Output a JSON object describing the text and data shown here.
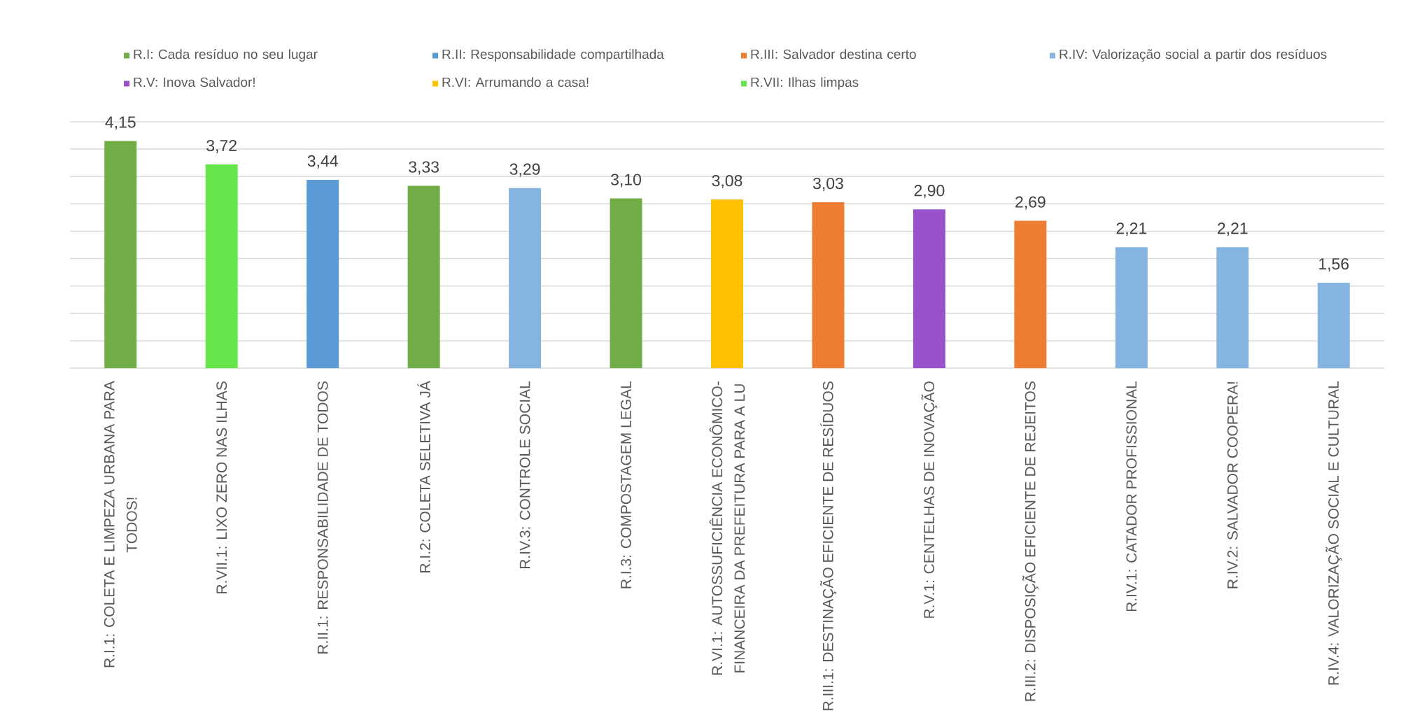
{
  "chart_data": {
    "type": "bar",
    "stacked": true,
    "categories": [
      "R.I.1: COLETA E LIMPEZA URBANA PARA TODOS!",
      "R.VII.1: LIXO ZERO NAS ILHAS",
      "R.II.1: RESPONSABILIDADE DE TODOS",
      "R.I.2: COLETA SELETIVA JÁ",
      "R.IV.3: CONTROLE SOCIAL",
      "R.I.3: COMPOSTAGEM LEGAL",
      "R.VI.1: AUTOSSUFICIÊNCIA ECONÔMICO-FINANCEIRA DA PREFEITURA PARA A LU",
      "R.III.1: DESTINAÇÃO EFICIENTE DE RESÍDUOS",
      "R.V.1: CENTELHAS DE INOVAÇÃO",
      "R.III.2: DISPOSIÇÃO EFICIENTE DE REJEITOS",
      "R.IV.1: CATADOR PROFISSIONAL",
      "R.IV.2: SALVADOR COOPERA!",
      "R.IV.4: VALORIZAÇÃO SOCIAL E CULTURAL"
    ],
    "series": [
      {
        "name": "R.I: Cada resíduo no seu lugar",
        "color": "#70ad47",
        "values": [
          4.15,
          null,
          null,
          3.33,
          null,
          3.1,
          null,
          null,
          null,
          null,
          null,
          null,
          null
        ],
        "value_labels": [
          "4,15",
          null,
          null,
          "3,33",
          null,
          "3,10",
          null,
          null,
          null,
          null,
          null,
          null,
          null
        ]
      },
      {
        "name": "R.II: Responsabilidade compartilhada",
        "color": "#5b9bd5",
        "values": [
          null,
          null,
          3.44,
          null,
          null,
          null,
          null,
          null,
          null,
          null,
          null,
          null,
          null
        ],
        "value_labels": [
          null,
          null,
          "3,44",
          null,
          null,
          null,
          null,
          null,
          null,
          null,
          null,
          null,
          null
        ]
      },
      {
        "name": "R.III: Salvador destina certo",
        "color": "#ed7d31",
        "values": [
          null,
          null,
          null,
          null,
          null,
          null,
          null,
          3.03,
          null,
          2.69,
          null,
          null,
          null
        ],
        "value_labels": [
          null,
          null,
          null,
          null,
          null,
          null,
          null,
          "3,03",
          null,
          "2,69",
          null,
          null,
          null
        ]
      },
      {
        "name": "R.IV: Valorização social a partir dos resíduos",
        "color": "#85b4e1",
        "values": [
          null,
          null,
          null,
          null,
          3.29,
          null,
          null,
          null,
          null,
          null,
          2.21,
          2.21,
          1.56
        ],
        "value_labels": [
          null,
          null,
          null,
          null,
          "3,29",
          null,
          null,
          null,
          null,
          null,
          "2,21",
          "2,21",
          "1,56"
        ]
      },
      {
        "name": "R.V: Inova Salvador!",
        "color": "#9952cc",
        "values": [
          null,
          null,
          null,
          null,
          null,
          null,
          null,
          null,
          2.9,
          null,
          null,
          null,
          null
        ],
        "value_labels": [
          null,
          null,
          null,
          null,
          null,
          null,
          null,
          null,
          "2,90",
          null,
          null,
          null,
          null
        ]
      },
      {
        "name": "R.VI: Arrumando a casa!",
        "color": "#ffc000",
        "values": [
          null,
          null,
          null,
          null,
          null,
          null,
          3.08,
          null,
          null,
          null,
          null,
          null,
          null
        ],
        "value_labels": [
          null,
          null,
          null,
          null,
          null,
          null,
          "3,08",
          null,
          null,
          null,
          null,
          null,
          null
        ]
      },
      {
        "name": "R.VII: Ilhas limpas",
        "color": "#66e64a",
        "values": [
          null,
          3.72,
          null,
          null,
          null,
          null,
          null,
          null,
          null,
          null,
          null,
          null,
          null
        ],
        "value_labels": [
          null,
          "3,72",
          null,
          null,
          null,
          null,
          null,
          null,
          null,
          null,
          null,
          null,
          null
        ]
      }
    ],
    "ylim": [
      0,
      4.5
    ],
    "yticks": [
      {
        "value": 0,
        "label": null
      },
      {
        "value": 0.5,
        "label": null
      },
      {
        "value": 1,
        "label": null
      },
      {
        "value": 1.5,
        "label": null
      },
      {
        "value": 2,
        "label": null
      },
      {
        "value": 2.5,
        "label": null
      },
      {
        "value": 3,
        "label": null
      },
      {
        "value": 3.5,
        "label": null
      },
      {
        "value": 4,
        "label": null
      },
      {
        "value": 4.5,
        "label": null
      }
    ],
    "grid": "y",
    "legend": "top",
    "tick_labels": "x"
  }
}
